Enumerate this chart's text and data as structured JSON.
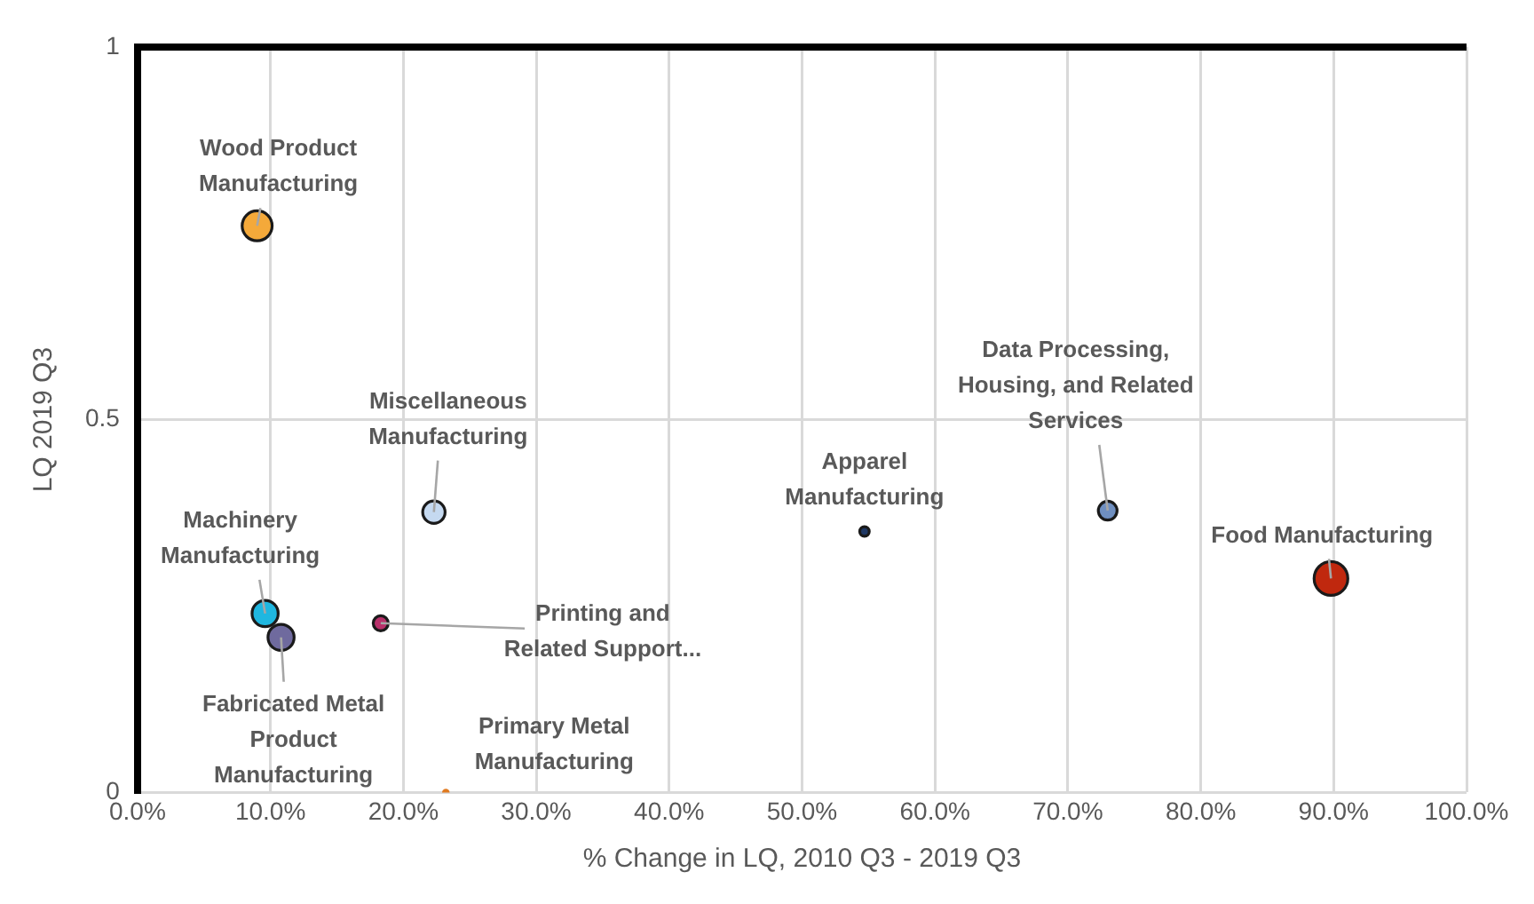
{
  "chart_data": {
    "type": "bubble",
    "xlabel": "% Change in LQ, 2010 Q3 - 2019 Q3",
    "ylabel": "LQ 2019 Q3",
    "x": [
      9.0,
      22.3,
      9.6,
      10.8,
      18.3,
      23.2,
      54.7,
      73.0,
      89.8
    ],
    "series": [
      {
        "values": [
          0.76,
          0.376,
          0.24,
          0.208,
          0.227,
          0,
          0.35,
          0.378,
          0.287
        ],
        "sizes": [
          0.79,
          0.44,
          0.6,
          0.6,
          0.2,
          0.05,
          0.08,
          0.31,
          1
        ],
        "colors": [
          "#f4a93a",
          "#c5d9f0",
          "#1fb7e0",
          "#6f6a9e",
          "#b8306a",
          "#e07a20",
          "#1f3864",
          "#6f8fc0",
          "#c0280e"
        ]
      }
    ],
    "annotations": [
      {
        "text": "Wood Product Manufacturing",
        "x": 9.0,
        "y": 0.76
      },
      {
        "text": "Miscellaneous Manufacturing",
        "x": 22.3,
        "y": 0.376
      },
      {
        "text": "Machinery Manufacturing",
        "x": 9.6,
        "y": 0.24
      },
      {
        "text": "Fabricated Metal Product Manufacturing",
        "x": 10.8,
        "y": 0.208
      },
      {
        "text": "Printing and Related Support...",
        "x": 18.3,
        "y": 0.227
      },
      {
        "text": "Primary Metal Manufacturing",
        "x": 23.2,
        "y": 0
      },
      {
        "text": "Apparel Manufacturing",
        "x": 54.7,
        "y": 0.35
      },
      {
        "text": "Data Processing, Housing, and Related Services",
        "x": 73.0,
        "y": 0.378
      },
      {
        "text": "Food Manufacturing",
        "x": 89.8,
        "y": 0.287
      }
    ],
    "xlim": [
      0,
      100
    ],
    "xticks": [
      {
        "value": 0,
        "label": "0.0%"
      },
      {
        "value": 10,
        "label": "10.0%"
      },
      {
        "value": 20,
        "label": "20.0%"
      },
      {
        "value": 30,
        "label": "30.0%"
      },
      {
        "value": 40,
        "label": "40.0%"
      },
      {
        "value": 50,
        "label": "50.0%"
      },
      {
        "value": 60,
        "label": "60.0%"
      },
      {
        "value": 70,
        "label": "70.0%"
      },
      {
        "value": 80,
        "label": "80.0%"
      },
      {
        "value": 90,
        "label": "90.0%"
      },
      {
        "value": 100,
        "label": "100.0%"
      }
    ],
    "ylim": [
      0,
      1
    ],
    "yticks": [
      0,
      0.5,
      1
    ],
    "grid": true,
    "marker": "circle",
    "legend": false
  }
}
